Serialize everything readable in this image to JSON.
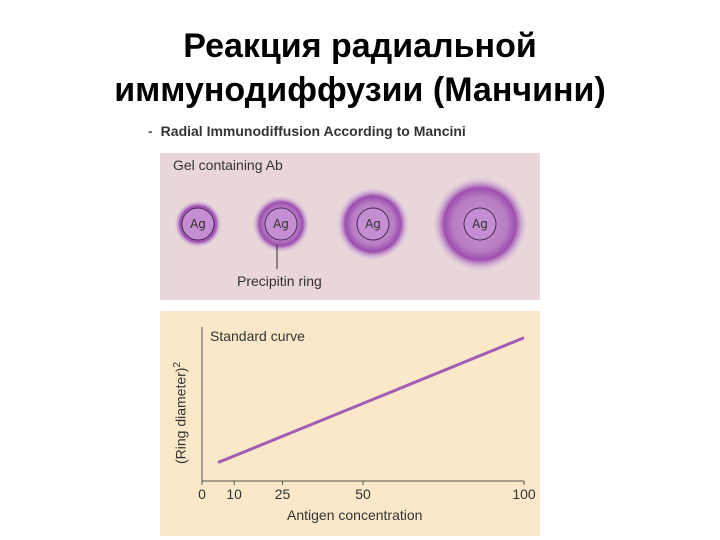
{
  "slide": {
    "title_line1": "Реакция радиальной",
    "title_line2": "иммунодиффузии (Манчини)",
    "subtitle_dash": "-",
    "subtitle": "Radial Immunodiffusion According to Mancini"
  },
  "gel_panel": {
    "label": "Gel containing Ab",
    "wells": [
      {
        "label": "Ag",
        "ring_level": 1
      },
      {
        "label": "Ag",
        "ring_level": 2
      },
      {
        "label": "Ag",
        "ring_level": 3
      },
      {
        "label": "Ag",
        "ring_level": 4
      }
    ],
    "ring_caption": "Precipitin ring",
    "colors": {
      "background": "#e8d6d9",
      "ring": "#a35cb5"
    }
  },
  "chart_data": {
    "type": "line",
    "title": "Standard curve",
    "xlabel": "Antigen concentration",
    "ylabel": "(Ring diameter)",
    "ylabel_superscript": "2",
    "x_ticks": [
      "0",
      "10",
      "25",
      "50",
      "100"
    ],
    "series": [
      {
        "x": [
          5,
          100
        ],
        "y": [
          0.12,
          0.93
        ],
        "color": "#a35cb5"
      }
    ],
    "grid": false,
    "colors": {
      "background": "#fae8c8"
    }
  }
}
